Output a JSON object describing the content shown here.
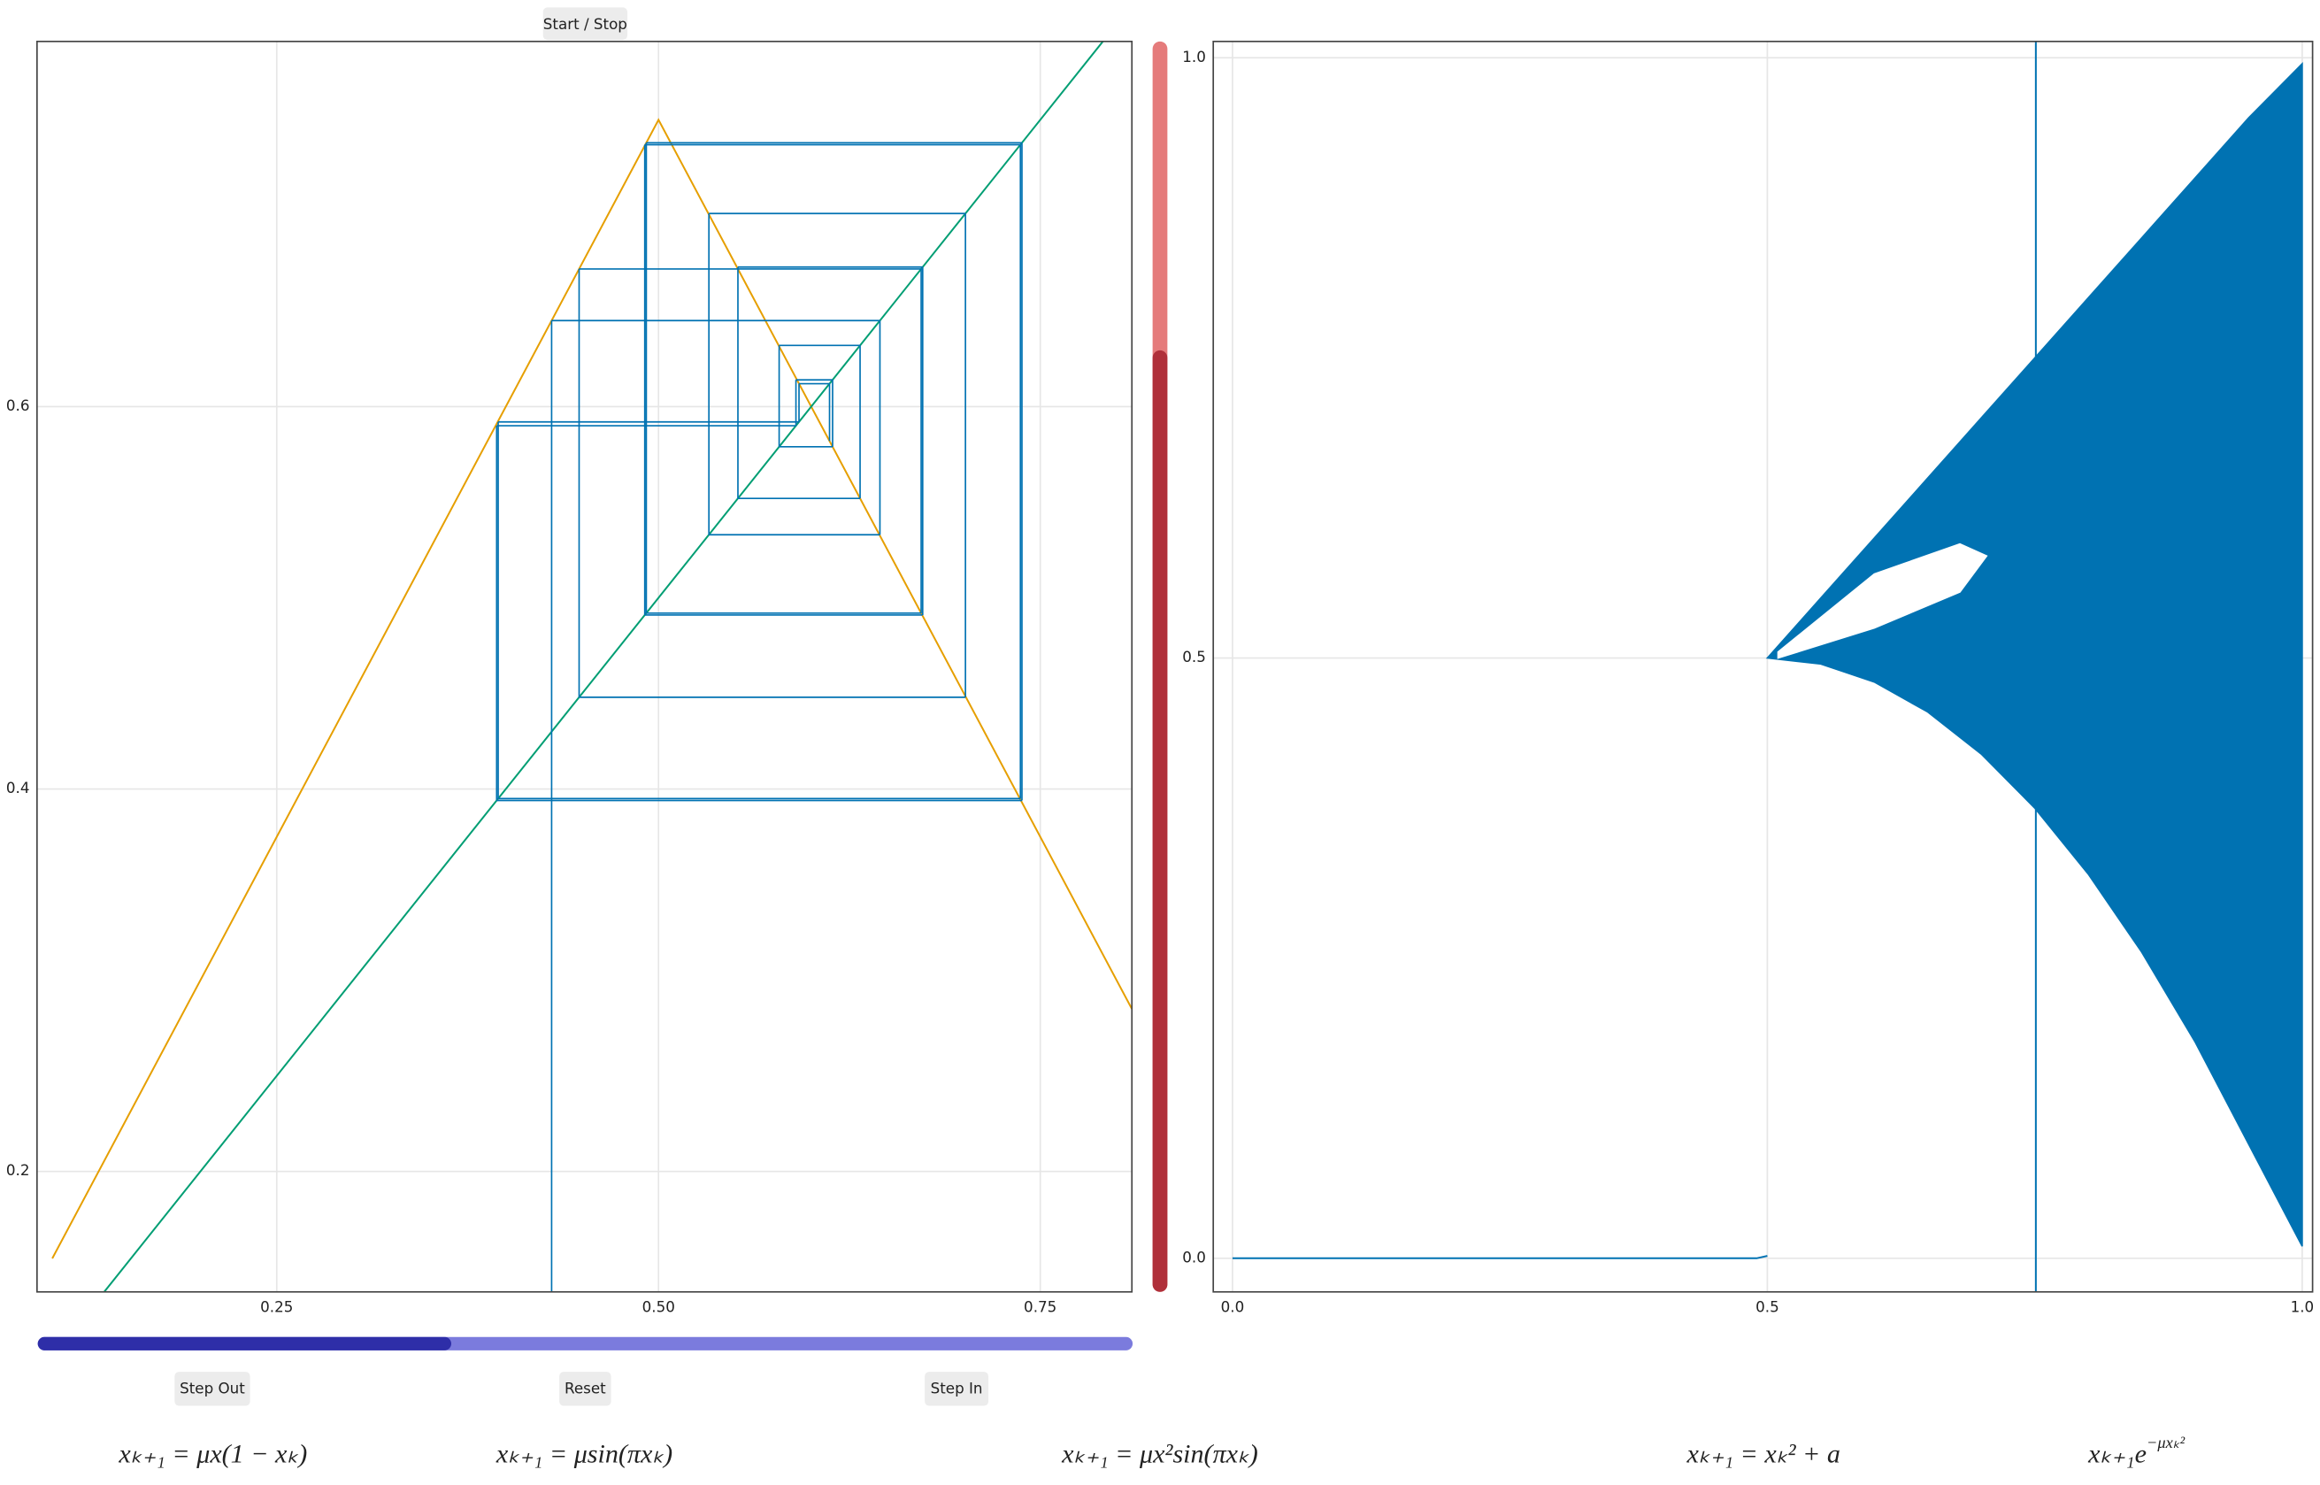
{
  "buttons": {
    "start_stop": "Start / Stop",
    "step_out": "Step Out",
    "reset": "Reset",
    "step_in": "Step In"
  },
  "sliders": {
    "vertical": 0.75,
    "horizontal": 0.37
  },
  "chart_data": [
    {
      "type": "line",
      "xlim": [
        0.093,
        0.81
      ],
      "ylim": [
        0.137,
        0.791
      ],
      "xticks": [
        0.25,
        {
          "value": 0.5,
          "label": "0.50"
        },
        0.75
      ],
      "yticks": [
        0.2,
        0.4,
        0.6
      ],
      "grid": true,
      "series": [
        {
          "color": "#e69f00",
          "x": [
            0.103,
            0.5,
            0.81
          ],
          "values": [
            0.1545,
            0.75,
            0.285
          ]
        },
        {
          "color": "#009e73",
          "x": [
            0.137,
            0.791
          ],
          "values": [
            0.137,
            0.791
          ]
        }
      ],
      "orbit": {
        "color": "#0072b2",
        "values": [
          0.43,
          0.645,
          0.533,
          0.701,
          0.448,
          0.672,
          0.492,
          0.738,
          0.394,
          0.59,
          0.614,
          0.579,
          0.632,
          0.552,
          0.673,
          0.491,
          0.737,
          0.395,
          0.592,
          0.612,
          0.582
        ]
      }
    },
    {
      "type": "scatter",
      "xlim": [
        -0.018,
        1.0097
      ],
      "ylim": [
        -0.028,
        1.0136
      ],
      "xticks": [
        {
          "value": 0,
          "label": "0.0"
        },
        0.5,
        {
          "value": 1,
          "label": "1.0"
        }
      ],
      "yticks": [
        {
          "value": 0,
          "label": "0.0"
        },
        0.5,
        {
          "value": 1,
          "label": "1.0"
        }
      ],
      "grid": true,
      "series": [
        {
          "color": "#0072b2",
          "x": [
            0,
            0.49,
            0.5
          ],
          "values": [
            0,
            0,
            0.002
          ]
        }
      ],
      "band": {
        "color": "#0072b2",
        "x": [
          0.5,
          0.55,
          0.6,
          0.65,
          0.7,
          0.75,
          0.8,
          0.85,
          0.9,
          0.95,
          1.0
        ],
        "upper": [
          0.5,
          0.55,
          0.6,
          0.65,
          0.7,
          0.75,
          0.8,
          0.85,
          0.9,
          0.95,
          0.995
        ],
        "lower": [
          0.5,
          0.495,
          0.48,
          0.455,
          0.42,
          0.375,
          0.32,
          0.255,
          0.18,
          0.095,
          0.01
        ]
      },
      "hole": {
        "color": "#ffffff",
        "x": [
          0.51,
          0.6,
          0.68,
          0.705
        ],
        "upper": [
          0.505,
          0.57,
          0.595,
          0.585
        ],
        "lower": [
          0.5,
          0.525,
          0.555,
          0.585
        ]
      },
      "marker": {
        "color": "#0072b2",
        "x": 0.751
      }
    }
  ],
  "formulas": [
    {
      "text": "xₖ₊₁ = μx(1 − xₖ)"
    },
    {
      "text": "xₖ₊₁ = μsin(πxₖ)"
    },
    {
      "text": "xₖ₊₁ = μx²sin(πxₖ)"
    },
    {
      "text": "xₖ₊₁ = xₖ² + a"
    },
    {
      "text": "xₖ₊₁e",
      "sup": "−μxₖ²"
    }
  ]
}
